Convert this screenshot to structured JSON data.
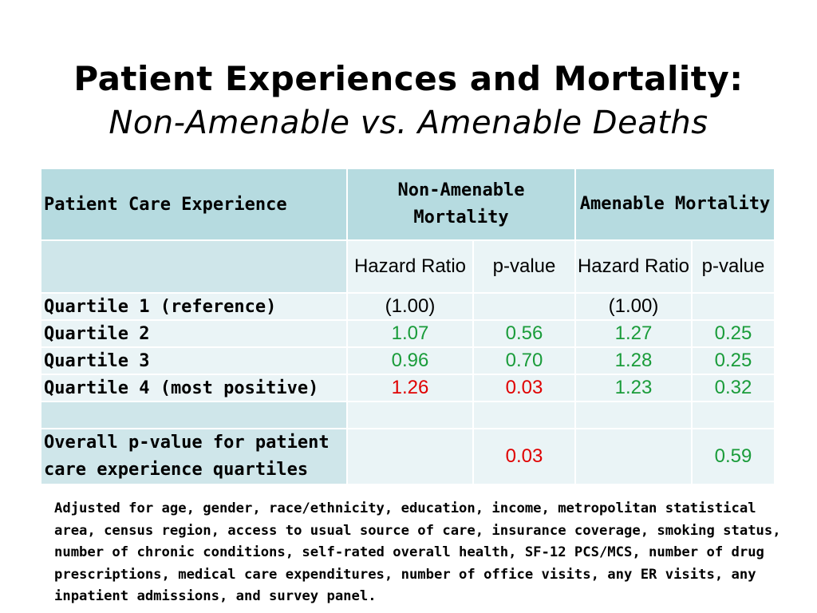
{
  "title": {
    "main": "Patient Experiences and Mortality:",
    "sub": "Non-Amenable vs. Amenable Deaths"
  },
  "table": {
    "header": {
      "row_label": "Patient Care Experience",
      "group1": "Non-Amenable Mortality",
      "group2": "Amenable Mortality"
    },
    "subheader": {
      "hr": "Hazard Ratio",
      "pv": "p-value"
    },
    "rows": [
      {
        "label": "Quartile 1 (reference)",
        "na_hr": "(1.00)",
        "na_p": "",
        "a_hr": "(1.00)",
        "a_p": ""
      },
      {
        "label": "Quartile 2",
        "na_hr": "1.07",
        "na_p": "0.56",
        "a_hr": "1.27",
        "a_p": "0.25"
      },
      {
        "label": "Quartile 3",
        "na_hr": "0.96",
        "na_p": "0.70",
        "a_hr": "1.28",
        "a_p": "0.25"
      },
      {
        "label": "Quartile 4 (most positive)",
        "na_hr": "1.26",
        "na_p": "0.03",
        "a_hr": "1.23",
        "a_p": "0.32"
      }
    ],
    "overall": {
      "label": "Overall p-value for patient care experience quartiles",
      "na_p": "0.03",
      "a_p": "0.59"
    }
  },
  "footnote": "Adjusted for age, gender, race/ethnicity, education, income, metropolitan statistical area, census region, access to usual source of care, insurance coverage, smoking status, number of chronic conditions, self-rated overall health, SF-12 PCS/MCS, number of drug prescriptions, medical care expenditures, number of office visits, any ER visits, any inpatient admissions, and survey panel.",
  "colors": {
    "header_bg": "#b6dbe0",
    "subheader_bg": "#cfe6ea",
    "row_bg": "#eaf4f6",
    "green": "#1a9c3a",
    "red": "#e00000"
  }
}
